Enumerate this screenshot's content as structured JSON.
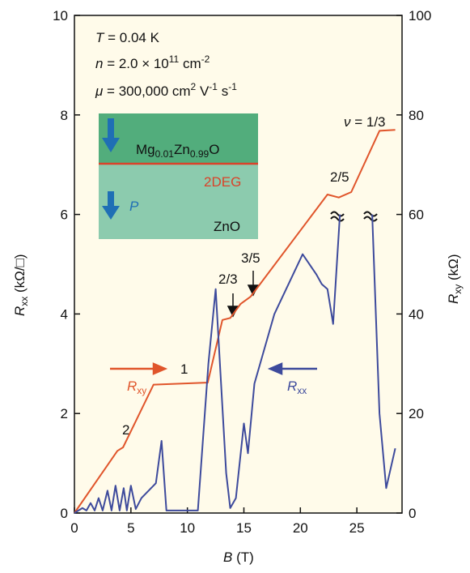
{
  "chart_data": {
    "type": "line",
    "xlabel": [
      "B",
      " (T)"
    ],
    "ylabel": [
      "R",
      "xx",
      " (kΩ/□)"
    ],
    "y2label": [
      "R",
      "xy",
      " (kΩ)"
    ],
    "xlim": [
      0,
      29
    ],
    "xticks": [
      0,
      5,
      10,
      15,
      20,
      25
    ],
    "ylim": [
      0,
      10
    ],
    "yticks": [
      0,
      2,
      4,
      6,
      8,
      10
    ],
    "y2lim": [
      0,
      100
    ],
    "y2ticks": [
      0,
      20,
      40,
      60,
      80,
      100
    ],
    "series": [
      {
        "name": [
          "R",
          "xy"
        ],
        "color": "#e0552b",
        "axis": "y2",
        "x": [
          0,
          3.8,
          4.3,
          7.0,
          11.8,
          13.1,
          13.8,
          14.7,
          15.6,
          22.4,
          23.4,
          24.5,
          27.0,
          28.4
        ],
        "values": [
          0,
          12.5,
          13.2,
          25.8,
          26.2,
          38.8,
          39.2,
          42.0,
          43.5,
          64.0,
          63.4,
          64.5,
          76.8,
          77.0
        ]
      },
      {
        "name": [
          "R",
          "xx"
        ],
        "color": "#3d4a9c",
        "x": [
          0,
          0.36,
          0.71,
          1.07,
          1.43,
          1.79,
          2.14,
          2.5,
          2.93,
          3.29,
          3.64,
          4.0,
          4.36,
          4.64,
          5.0,
          5.43,
          5.93,
          7.21,
          7.71,
          8.14,
          10.93,
          11.86,
          12.5,
          13.43,
          13.79,
          14.29,
          15.0,
          15.36,
          15.93,
          17.7,
          20.2,
          21.4,
          21.9,
          22.4,
          22.9,
          23.5,
          23.6,
          26.3,
          26.36,
          27.0,
          27.6,
          28.4
        ],
        "values": [
          0,
          0.05,
          0.1,
          0.05,
          0.2,
          0.05,
          0.3,
          0.05,
          0.45,
          0.05,
          0.55,
          0.05,
          0.5,
          0.05,
          0.55,
          0.08,
          0.3,
          0.6,
          1.45,
          0.05,
          0.05,
          3.0,
          4.5,
          0.8,
          0.1,
          0.3,
          1.8,
          1.2,
          2.6,
          4.0,
          5.2,
          4.8,
          4.6,
          4.5,
          3.8,
          6.0,
          null,
          null,
          6.0,
          2.0,
          0.5,
          1.3
        ]
      }
    ],
    "annotations": {
      "temp": [
        "T",
        " = 0.04 K"
      ],
      "density": [
        "n",
        " = 2.0 × 10",
        "11",
        " cm",
        "-2"
      ],
      "mobility": [
        "μ",
        " = 300,000 cm",
        "2",
        " V",
        "-1",
        " s",
        "-1"
      ],
      "nu13": [
        "ν",
        " = 1/3"
      ],
      "nu25": "2/5",
      "nu35": "3/5",
      "nu23": "2/3",
      "nu1": "1",
      "nu2": "2",
      "inset_top": [
        "Mg",
        "0.01",
        "Zn",
        "0.99",
        "O"
      ],
      "inset_2deg": "2DEG",
      "inset_p": "P",
      "inset_zno": "ZnO"
    }
  }
}
